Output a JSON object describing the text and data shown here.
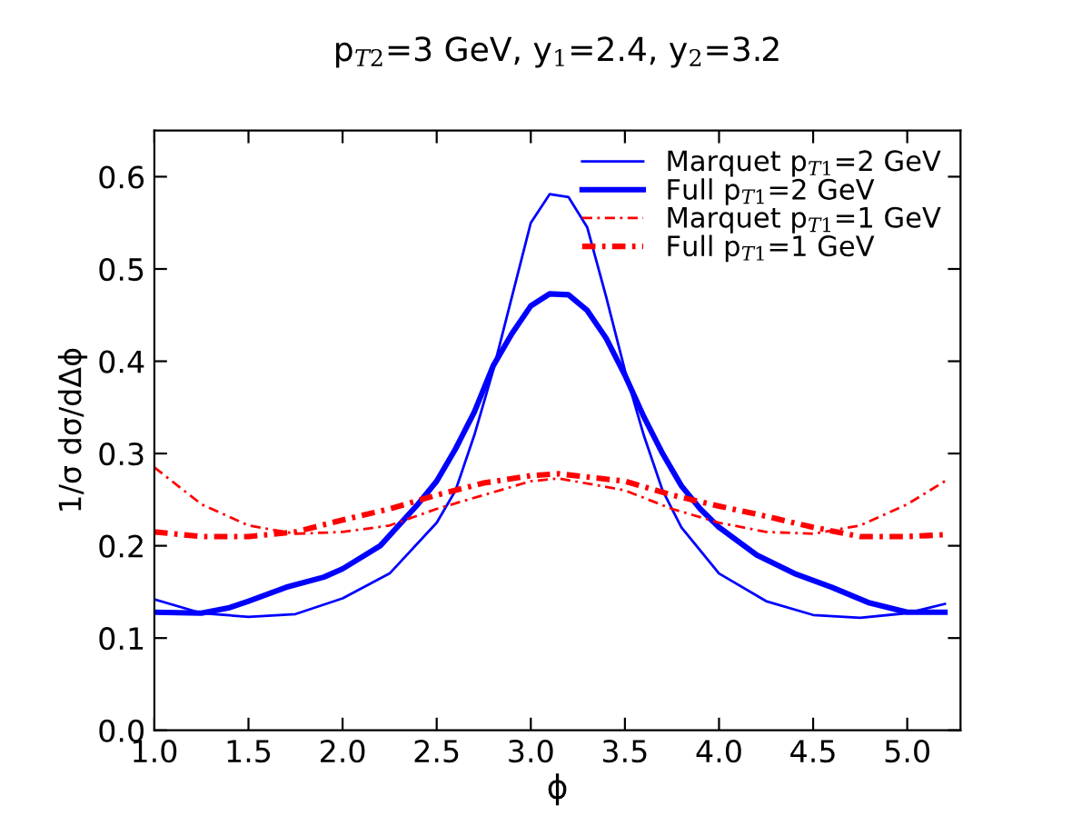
{
  "chart_data": {
    "type": "line",
    "title": "p$_{T2}$=3 GeV, y$_{1}$=2.4, y$_{2}$=3.2",
    "xlabel": "ϕ",
    "ylabel": "1/σ dσ/dΔϕ",
    "xlim": [
      1.0,
      5.283
    ],
    "ylim": [
      0.0,
      0.65
    ],
    "xticks": [
      {
        "value": 1.0,
        "label": "1.0"
      },
      1.5,
      {
        "value": 2.0,
        "label": "2.0"
      },
      2.5,
      {
        "value": 3.0,
        "label": "3.0"
      },
      3.5,
      {
        "value": 4.0,
        "label": "4.0"
      },
      4.5,
      {
        "value": 5.0,
        "label": "5.0"
      }
    ],
    "yticks": [
      {
        "value": 0.0,
        "label": "0.0"
      },
      0.1,
      0.2,
      0.3,
      0.4,
      0.5,
      0.6
    ],
    "grid": false,
    "legend": "top right",
    "marker": "none",
    "series": [
      {
        "name": "Marquet p$_{T1}$=2 GeV",
        "color": "#0000ff",
        "line_style": "solid",
        "x": [
          1.0,
          1.25,
          1.5,
          1.75,
          2.0,
          2.25,
          2.5,
          2.6,
          2.7,
          2.8,
          2.9,
          3.0,
          3.1,
          3.2,
          3.3,
          3.4,
          3.5,
          3.6,
          3.7,
          3.8,
          4.0,
          4.25,
          4.5,
          4.75,
          5.0,
          5.2
        ],
        "values": [
          0.142,
          0.127,
          0.123,
          0.126,
          0.143,
          0.17,
          0.225,
          0.26,
          0.32,
          0.39,
          0.47,
          0.55,
          0.581,
          0.578,
          0.545,
          0.47,
          0.39,
          0.32,
          0.26,
          0.22,
          0.17,
          0.14,
          0.125,
          0.122,
          0.127,
          0.137
        ]
      },
      {
        "name": "Full p$_{T1}$=2 GeV",
        "color": "#0000ff",
        "line_style": "solid",
        "x": [
          1.0,
          1.25,
          1.4,
          1.5,
          1.7,
          1.9,
          2.0,
          2.2,
          2.4,
          2.5,
          2.6,
          2.7,
          2.8,
          2.9,
          3.0,
          3.1,
          3.2,
          3.3,
          3.4,
          3.5,
          3.6,
          3.7,
          3.8,
          3.9,
          4.0,
          4.2,
          4.4,
          4.6,
          4.8,
          5.0,
          5.2
        ],
        "values": [
          0.128,
          0.127,
          0.133,
          0.14,
          0.155,
          0.166,
          0.175,
          0.2,
          0.245,
          0.27,
          0.305,
          0.345,
          0.395,
          0.43,
          0.46,
          0.473,
          0.472,
          0.455,
          0.425,
          0.385,
          0.34,
          0.3,
          0.265,
          0.24,
          0.22,
          0.19,
          0.17,
          0.155,
          0.138,
          0.128,
          0.128
        ]
      },
      {
        "name": "Marquet p$_{T1}$=1 GeV",
        "color": "#ff0000",
        "line_style": "dashed",
        "x": [
          1.0,
          1.25,
          1.5,
          1.75,
          2.0,
          2.25,
          2.5,
          2.75,
          3.0,
          3.15,
          3.5,
          3.75,
          4.0,
          4.25,
          4.5,
          4.75,
          5.0,
          5.2
        ],
        "values": [
          0.285,
          0.245,
          0.222,
          0.213,
          0.215,
          0.222,
          0.24,
          0.255,
          0.27,
          0.273,
          0.26,
          0.24,
          0.225,
          0.215,
          0.213,
          0.222,
          0.245,
          0.27
        ]
      },
      {
        "name": "Full p$_{T1}$=1 GeV",
        "color": "#ff0000",
        "line_style": "dashed",
        "x": [
          1.0,
          1.25,
          1.5,
          1.75,
          2.0,
          2.25,
          2.5,
          2.75,
          3.0,
          3.15,
          3.5,
          3.75,
          4.0,
          4.25,
          4.5,
          4.75,
          5.0,
          5.2
        ],
        "values": [
          0.215,
          0.21,
          0.21,
          0.215,
          0.228,
          0.24,
          0.255,
          0.268,
          0.276,
          0.278,
          0.27,
          0.255,
          0.243,
          0.232,
          0.22,
          0.21,
          0.21,
          0.212
        ]
      }
    ]
  }
}
